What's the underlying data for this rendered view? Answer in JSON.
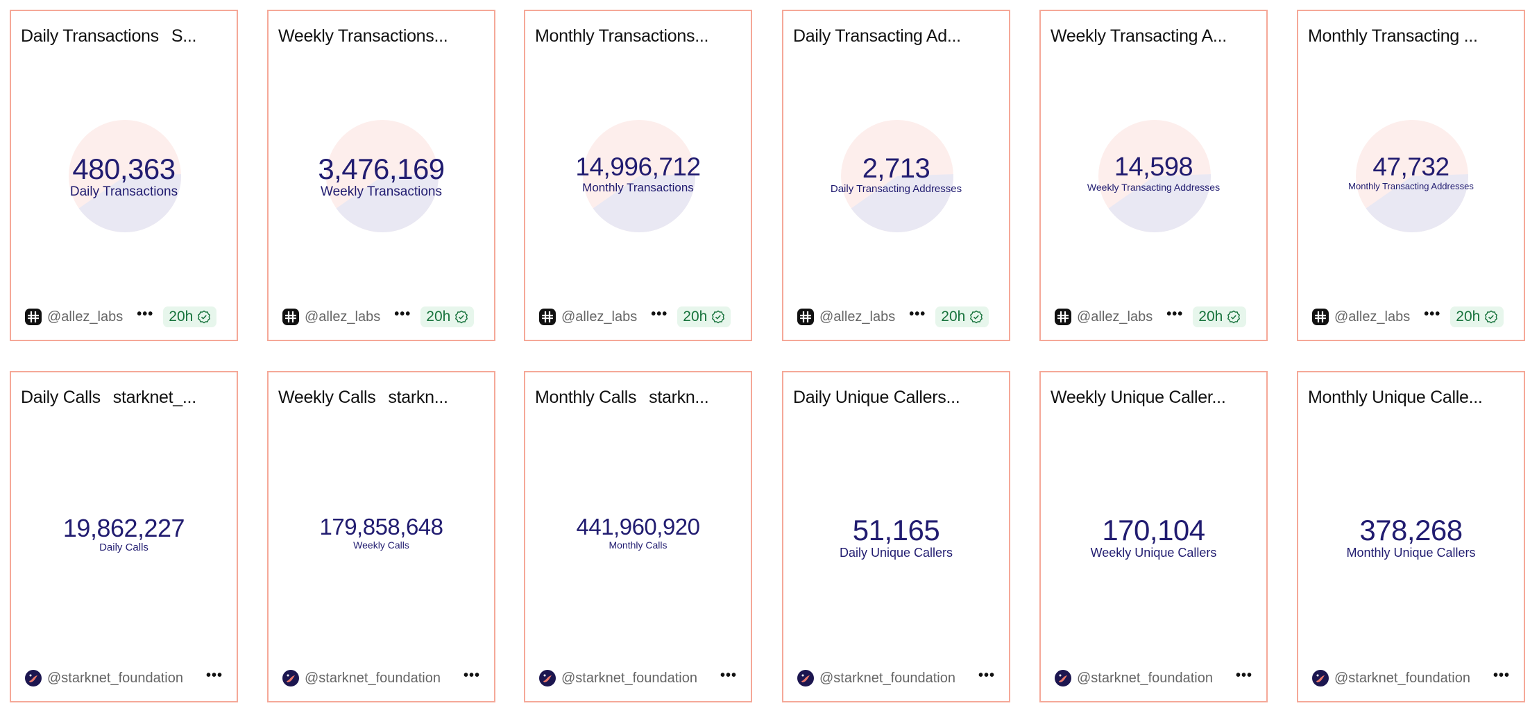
{
  "colors": {
    "border": "#f5a898",
    "number": "#211c70",
    "pie_top": "#fdeeec",
    "pie_bottom": "#e9e8f3",
    "badge_bg": "#e7f6ec",
    "badge_text": "#17733c"
  },
  "cards": [
    {
      "title": "Daily Transactions",
      "subtitle": "S...",
      "value": "480,363",
      "label": "Daily Transactions",
      "author": "@allez_labs",
      "badge": "20h",
      "avatar": "allez-logo-icon",
      "pie": true
    },
    {
      "title": "Weekly Transactions...",
      "subtitle": "",
      "value": "3,476,169",
      "label": "Weekly Transactions",
      "author": "@allez_labs",
      "badge": "20h",
      "avatar": "allez-logo-icon",
      "pie": true
    },
    {
      "title": "Monthly Transactions...",
      "subtitle": "",
      "value": "14,996,712",
      "label": "Monthly Transactions",
      "author": "@allez_labs",
      "badge": "20h",
      "avatar": "allez-logo-icon",
      "pie": true
    },
    {
      "title": "Daily Transacting Ad...",
      "subtitle": "",
      "value": "2,713",
      "label": "Daily Transacting Addresses",
      "author": "@allez_labs",
      "badge": "20h",
      "avatar": "allez-logo-icon",
      "pie": true
    },
    {
      "title": "Weekly Transacting A...",
      "subtitle": "",
      "value": "14,598",
      "label": "Weekly Transacting Addresses",
      "author": "@allez_labs",
      "badge": "20h",
      "avatar": "allez-logo-icon",
      "pie": true
    },
    {
      "title": "Monthly Transacting ...",
      "subtitle": "",
      "value": "47,732",
      "label": "Monthly Transacting Addresses",
      "author": "@allez_labs",
      "badge": "20h",
      "avatar": "allez-logo-icon",
      "pie": true
    },
    {
      "title": "Daily Calls",
      "subtitle": "starknet_...",
      "value": "19,862,227",
      "label": "Daily Calls",
      "author": "@starknet_foundation",
      "avatar": "starknet-logo-icon",
      "pie": false
    },
    {
      "title": "Weekly Calls",
      "subtitle": "starkn...",
      "value": "179,858,648",
      "label": "Weekly Calls",
      "author": "@starknet_foundation",
      "avatar": "starknet-logo-icon",
      "pie": false
    },
    {
      "title": "Monthly Calls",
      "subtitle": "starkn...",
      "value": "441,960,920",
      "label": "Monthly Calls",
      "author": "@starknet_foundation",
      "avatar": "starknet-logo-icon",
      "pie": false
    },
    {
      "title": "Daily Unique Callers...",
      "subtitle": "",
      "value": "51,165",
      "label": "Daily Unique Callers",
      "author": "@starknet_foundation",
      "avatar": "starknet-logo-icon",
      "pie": false
    },
    {
      "title": "Weekly Unique Caller...",
      "subtitle": "",
      "value": "170,104",
      "label": "Weekly Unique Callers",
      "author": "@starknet_foundation",
      "avatar": "starknet-logo-icon",
      "pie": false
    },
    {
      "title": "Monthly Unique Calle...",
      "subtitle": "",
      "value": "378,268",
      "label": "Monthly Unique Callers",
      "author": "@starknet_foundation",
      "avatar": "starknet-logo-icon",
      "pie": false
    }
  ],
  "more_icon": "more-horizontal-icon",
  "badge_icon": "verified-check-icon"
}
